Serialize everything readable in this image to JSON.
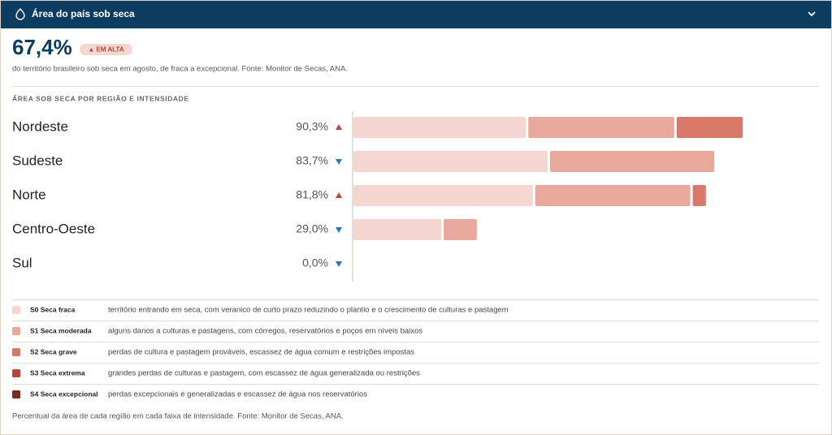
{
  "header": {
    "title": "Área do país sob seca"
  },
  "stat": {
    "value": "67,4%",
    "badge": "▲ EM ALTA",
    "description": "do território brasileiro sob seca em agosto, de fraca a excepcional. Fonte: Monitor de Secas, ANA."
  },
  "chart_data": {
    "type": "stacked-bar-horizontal",
    "title": "ÁREA SOB SECA POR REGIÃO E INTENSIDADE",
    "categories": [
      "Nordeste",
      "Sudeste",
      "Norte",
      "Centro-Oeste",
      "Sul"
    ],
    "totals": [
      90.3,
      83.7,
      81.8,
      29.0,
      0.0
    ],
    "total_labels": [
      "90,3%",
      "83,7%",
      "81,8%",
      "29,0%",
      "0,0%"
    ],
    "trend": [
      "up",
      "down",
      "up",
      "down",
      "down"
    ],
    "xlim": [
      0,
      100
    ],
    "series": [
      {
        "name": "S0 Seca fraca",
        "color": "#f6d6d1",
        "description": "território entrando em seca, com veranico de curto prazo reduzindo o plantio e o crescimento de culturas e pastagem",
        "values": [
          40.3,
          45.3,
          41.9,
          20.8,
          0
        ]
      },
      {
        "name": "S1 Seca moderada",
        "color": "#e8a89c",
        "description": "alguns danos a culturas e pastagens, com córregos, reservatórios e poços em níveis baixos",
        "values": [
          34.2,
          38.4,
          36.3,
          8.2,
          0
        ]
      },
      {
        "name": "S2 Seca grave",
        "color": "#d9796a",
        "description": "perdas de cultura e pastagem prováveis, escassez de água comum e restrições impostas",
        "values": [
          15.8,
          0,
          3.6,
          0,
          0
        ]
      },
      {
        "name": "S3 Seca extrema",
        "color": "#b6463a",
        "description": "grandes perdas de culturas e pastagem, com escassez de água generalizada ou restrições",
        "values": [
          0,
          0,
          0,
          0,
          0
        ]
      },
      {
        "name": "S4 Seca excepcional",
        "color": "#7a2a1f",
        "description": "perdas excepcionais e generalizadas e escassez de água nos reservatórios",
        "values": [
          0,
          0,
          0,
          0,
          0
        ]
      }
    ]
  },
  "footer": {
    "note": "Percentual da área de cada região em cada faixa de intensidade. Fonte: Monitor de Secas, ANA."
  }
}
